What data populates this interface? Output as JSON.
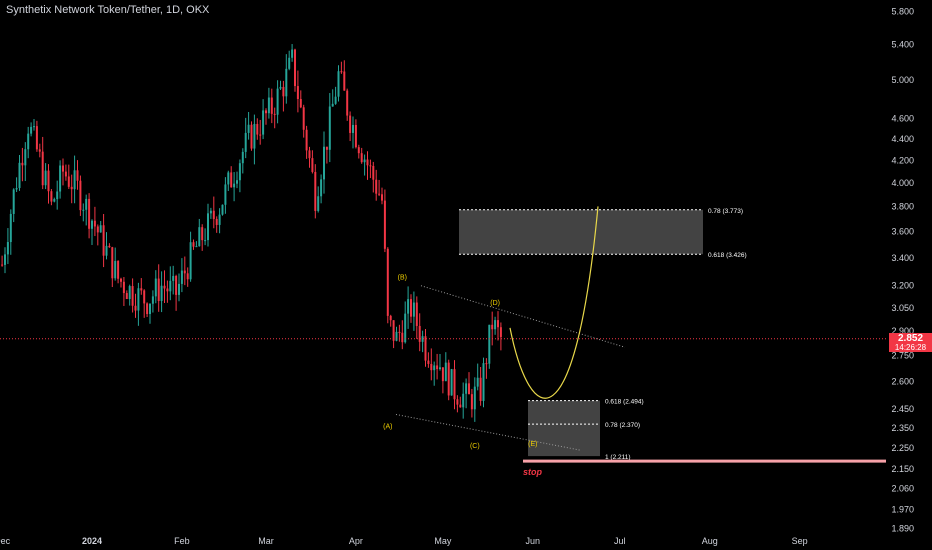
{
  "header": {
    "title": "Synthetix Network Token/Tether, 1D, OKX"
  },
  "price_badge": {
    "price": "2.852",
    "countdown": "14:26:28"
  },
  "colors": {
    "up": "#26a69a",
    "down": "#f23645",
    "text": "#d1d4dc",
    "bg": "#000000",
    "path": "#e8d84a",
    "wave_label": "#f0d000",
    "stop": "#f23645"
  },
  "chart_data": {
    "type": "candlestick",
    "yscale": "log",
    "ylim": [
      1.85,
      5.95
    ],
    "y_ticks": [
      "5.800",
      "5.400",
      "5.000",
      "4.600",
      "4.400",
      "4.200",
      "4.000",
      "3.800",
      "3.600",
      "3.400",
      "3.200",
      "3.050",
      "2.900",
      "2.750",
      "2.600",
      "2.450",
      "2.350",
      "2.250",
      "2.150",
      "2.060",
      "1.970",
      "1.890"
    ],
    "x_ticks": [
      "Dec",
      "2024",
      "Feb",
      "Mar",
      "Apr",
      "May",
      "Jun",
      "Jul",
      "Aug",
      "Sep"
    ],
    "close_path_approx": [
      [
        "2023-12-01",
        3.35
      ],
      [
        "2023-12-05",
        3.9
      ],
      [
        "2023-12-10",
        4.55
      ],
      [
        "2023-12-14",
        4.2
      ],
      [
        "2023-12-18",
        3.8
      ],
      [
        "2023-12-22",
        4.1
      ],
      [
        "2023-12-27",
        3.95
      ],
      [
        "2024-01-01",
        3.7
      ],
      [
        "2024-01-05",
        3.5
      ],
      [
        "2024-01-10",
        3.25
      ],
      [
        "2024-01-15",
        3.15
      ],
      [
        "2024-01-20",
        3.1
      ],
      [
        "2024-01-25",
        3.2
      ],
      [
        "2024-01-30",
        3.15
      ],
      [
        "2024-02-04",
        3.4
      ],
      [
        "2024-02-09",
        3.6
      ],
      [
        "2024-02-14",
        3.8
      ],
      [
        "2024-02-19",
        4.1
      ],
      [
        "2024-02-24",
        4.4
      ],
      [
        "2024-02-28",
        4.55
      ],
      [
        "2024-03-03",
        4.7
      ],
      [
        "2024-03-07",
        4.95
      ],
      [
        "2024-03-10",
        5.2
      ],
      [
        "2024-03-14",
        4.5
      ],
      [
        "2024-03-18",
        3.9
      ],
      [
        "2024-03-22",
        4.4
      ],
      [
        "2024-03-26",
        5.05
      ],
      [
        "2024-03-30",
        4.6
      ],
      [
        "2024-04-03",
        4.3
      ],
      [
        "2024-04-06",
        4.1
      ],
      [
        "2024-04-10",
        3.85
      ],
      [
        "2024-04-12",
        2.95
      ],
      [
        "2024-04-15",
        2.85
      ],
      [
        "2024-04-20",
        3.05
      ],
      [
        "2024-04-25",
        2.8
      ],
      [
        "2024-04-30",
        2.7
      ],
      [
        "2024-05-05",
        2.55
      ],
      [
        "2024-05-10",
        2.5
      ],
      [
        "2024-05-14",
        2.55
      ],
      [
        "2024-05-18",
        2.95
      ],
      [
        "2024-05-21",
        2.85
      ]
    ],
    "current_price": 2.852,
    "wave_labels": [
      {
        "label": "(A)",
        "date": "2024-04-12",
        "price": 2.42
      },
      {
        "label": "(B)",
        "date": "2024-04-17",
        "price": 3.2
      },
      {
        "label": "(C)",
        "date": "2024-05-12",
        "price": 2.33
      },
      {
        "label": "(D)",
        "date": "2024-05-19",
        "price": 3.03
      },
      {
        "label": "(E)",
        "date": "2024-06-01",
        "price": 2.28
      }
    ],
    "fib_levels": [
      {
        "label": "0.78 (3.773)",
        "value": 3.773
      },
      {
        "label": "0.618 (3.426)",
        "value": 3.426
      },
      {
        "label": "0.618 (2.494)",
        "value": 2.494
      },
      {
        "label": "0.78 (2.370)",
        "value": 2.37
      },
      {
        "label": "1 (2.211)",
        "value": 2.211
      }
    ],
    "stop_label": "stop"
  }
}
